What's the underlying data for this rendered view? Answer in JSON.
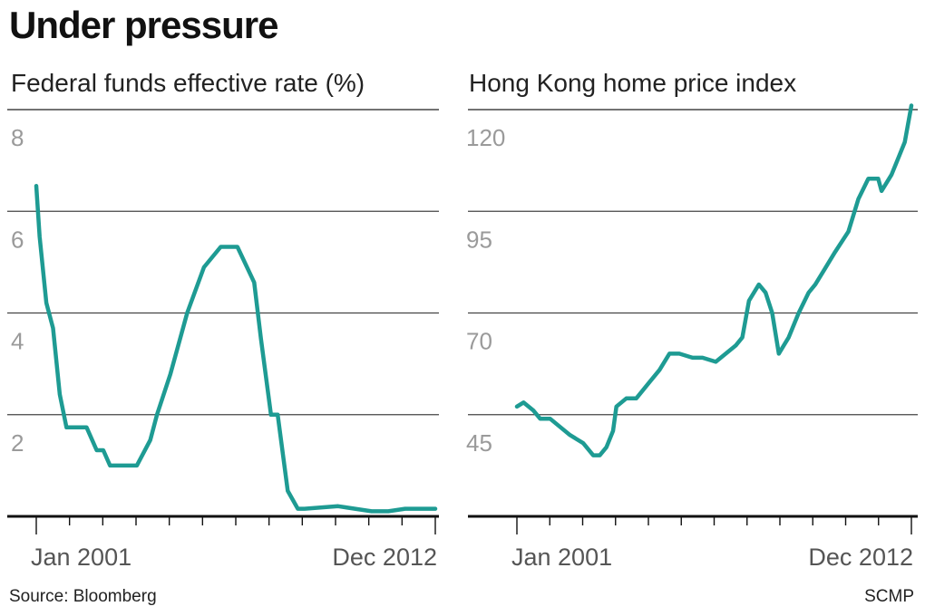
{
  "title": "Under pressure",
  "source": "Source: Bloomberg",
  "credit": "SCMP",
  "colors": {
    "line": "#1e9b93",
    "grid": "#444444",
    "axis": "#111111"
  },
  "chart_data": [
    {
      "type": "line",
      "title": "Federal funds effective rate (%)",
      "xlabel": "",
      "ylabel": "",
      "x_tick_labels": [
        "Jan 2001",
        "Dec 2012"
      ],
      "x_range": [
        2000.5,
        2013.0
      ],
      "ylim": [
        0,
        8
      ],
      "y_ticks": [
        2,
        4,
        6,
        8
      ],
      "y_tick_labels": [
        "2",
        "4",
        "6",
        "8"
      ],
      "grid": true,
      "series": [
        {
          "name": "Federal funds effective rate",
          "x": [
            2001.0,
            2001.1,
            2001.3,
            2001.5,
            2001.7,
            2001.9,
            2002.0,
            2002.2,
            2002.5,
            2002.8,
            2003.0,
            2003.2,
            2003.5,
            2003.8,
            2004.0,
            2004.4,
            2004.6,
            2005.0,
            2005.5,
            2006.0,
            2006.5,
            2006.7,
            2007.0,
            2007.5,
            2007.7,
            2008.0,
            2008.2,
            2008.5,
            2008.8,
            2009.0,
            2010.0,
            2011.0,
            2011.5,
            2012.0,
            2012.9
          ],
          "values": [
            6.5,
            5.5,
            4.2,
            3.7,
            2.4,
            1.75,
            1.75,
            1.75,
            1.75,
            1.3,
            1.3,
            1.0,
            1.0,
            1.0,
            1.0,
            1.5,
            2.0,
            2.8,
            4.0,
            4.9,
            5.3,
            5.3,
            5.3,
            4.6,
            3.5,
            2.0,
            2.0,
            0.5,
            0.15,
            0.15,
            0.2,
            0.1,
            0.1,
            0.15,
            0.15
          ]
        }
      ]
    },
    {
      "type": "line",
      "title": "Hong Kong home price index",
      "xlabel": "",
      "ylabel": "",
      "x_tick_labels": [
        "Jan 2001",
        "Dec 2012"
      ],
      "x_range": [
        2000.5,
        2013.0
      ],
      "ylim": [
        20,
        120
      ],
      "y_ticks": [
        45,
        70,
        95,
        120
      ],
      "y_tick_labels": [
        "45",
        "70",
        "95",
        "120"
      ],
      "grid": true,
      "series": [
        {
          "name": "Hong Kong home price index",
          "x": [
            2001.0,
            2001.2,
            2001.5,
            2001.7,
            2002.0,
            2002.3,
            2002.6,
            2003.0,
            2003.3,
            2003.5,
            2003.7,
            2003.9,
            2004.0,
            2004.3,
            2004.6,
            2005.0,
            2005.3,
            2005.6,
            2005.9,
            2006.3,
            2006.6,
            2007.0,
            2007.3,
            2007.6,
            2007.8,
            2008.0,
            2008.3,
            2008.5,
            2008.7,
            2008.9,
            2009.2,
            2009.5,
            2009.8,
            2010.0,
            2010.3,
            2010.6,
            2011.0,
            2011.3,
            2011.6,
            2011.9,
            2012.0,
            2012.3,
            2012.5,
            2012.7,
            2012.9
          ],
          "values": [
            47,
            48,
            46,
            44,
            44,
            42,
            40,
            38,
            35,
            35,
            37,
            41,
            47,
            49,
            49,
            53,
            56,
            60,
            60,
            59,
            59,
            58,
            60,
            62,
            64,
            73,
            77,
            75,
            70,
            60,
            64,
            70,
            75,
            77,
            81,
            85,
            90,
            98,
            103,
            103,
            100,
            104,
            108,
            112,
            121
          ]
        }
      ]
    }
  ]
}
